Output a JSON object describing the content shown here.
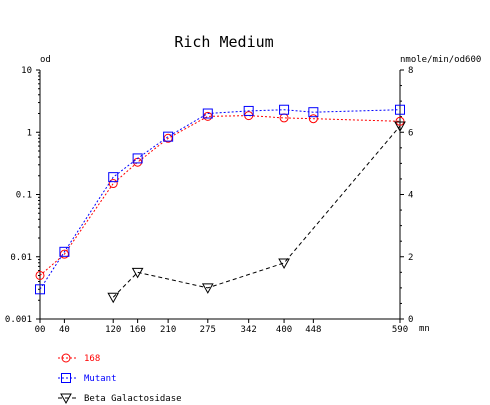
{
  "chart_data": {
    "type": "line",
    "title": "Rich Medium",
    "y_left_label": "od",
    "y_right_label": "nmole/min/od600",
    "x_unit_label": "mn",
    "x_ticks": [
      0,
      40,
      120,
      160,
      210,
      275,
      342,
      400,
      448,
      590
    ],
    "x_tick_labels": [
      "00",
      "40",
      "120",
      "160",
      "210",
      "275",
      "342",
      "400",
      "448",
      "590"
    ],
    "xlim": [
      0,
      590
    ],
    "y_left_scale": "log",
    "y_left_lim": [
      0.001,
      10
    ],
    "y_left_ticks": [
      10,
      1,
      0.1,
      0.01,
      0.001
    ],
    "y_left_tick_labels": [
      "10",
      "1",
      "0.1",
      "0.01",
      "0.001"
    ],
    "y_right_lim": [
      0,
      8
    ],
    "y_right_ticks": [
      8,
      6,
      4,
      2,
      0
    ],
    "y_right_tick_labels": [
      "8",
      "6",
      "4",
      "2",
      "0"
    ],
    "grid": false,
    "legend_position": "bottom-left",
    "series": [
      {
        "name": "168",
        "axis": "left",
        "color": "#ff0000",
        "marker": "circle",
        "line": "dotted",
        "x": [
          0,
          40,
          120,
          160,
          210,
          275,
          342,
          400,
          448,
          590
        ],
        "y": [
          0.005,
          0.011,
          0.15,
          0.33,
          0.8,
          1.8,
          1.85,
          1.7,
          1.65,
          1.5
        ]
      },
      {
        "name": "Mutant",
        "axis": "left",
        "color": "#0000ff",
        "marker": "square",
        "line": "dotted",
        "x": [
          0,
          40,
          120,
          160,
          210,
          275,
          342,
          400,
          448,
          590
        ],
        "y": [
          0.003,
          0.012,
          0.19,
          0.38,
          0.85,
          2.0,
          2.2,
          2.3,
          2.1,
          2.3
        ]
      },
      {
        "name": "Beta Galactosidase",
        "axis": "right",
        "color": "#000000",
        "marker": "triangle-down",
        "line": "dashed",
        "x": [
          120,
          160,
          275,
          400,
          590
        ],
        "y": [
          0.7,
          1.5,
          1.0,
          1.8,
          6.2
        ]
      }
    ]
  }
}
